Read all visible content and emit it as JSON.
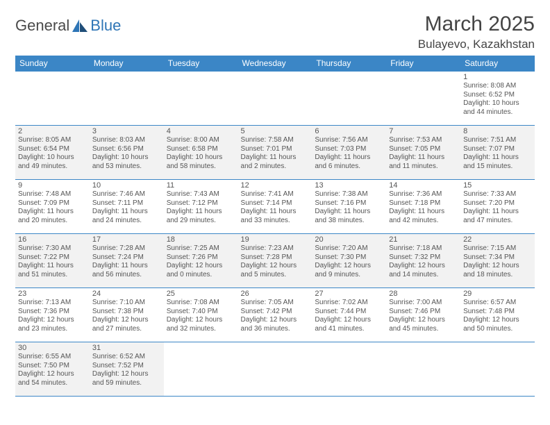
{
  "logo": {
    "part1": "General",
    "part2": "Blue"
  },
  "title": "March 2025",
  "location": "Bulayevo, Kazakhstan",
  "colors": {
    "header_bg": "#3b86c6",
    "header_text": "#ffffff",
    "shaded_bg": "#f2f2f2",
    "border": "#3b86c6",
    "text": "#555555"
  },
  "day_headers": [
    "Sunday",
    "Monday",
    "Tuesday",
    "Wednesday",
    "Thursday",
    "Friday",
    "Saturday"
  ],
  "weeks": [
    [
      {
        "empty": true
      },
      {
        "empty": true
      },
      {
        "empty": true
      },
      {
        "empty": true
      },
      {
        "empty": true
      },
      {
        "empty": true
      },
      {
        "day": 1,
        "sunrise": "8:08 AM",
        "sunset": "6:52 PM",
        "daylight": "10 hours and 44 minutes."
      }
    ],
    [
      {
        "day": 2,
        "shaded": true,
        "sunrise": "8:05 AM",
        "sunset": "6:54 PM",
        "daylight": "10 hours and 49 minutes."
      },
      {
        "day": 3,
        "shaded": true,
        "sunrise": "8:03 AM",
        "sunset": "6:56 PM",
        "daylight": "10 hours and 53 minutes."
      },
      {
        "day": 4,
        "shaded": true,
        "sunrise": "8:00 AM",
        "sunset": "6:58 PM",
        "daylight": "10 hours and 58 minutes."
      },
      {
        "day": 5,
        "shaded": true,
        "sunrise": "7:58 AM",
        "sunset": "7:01 PM",
        "daylight": "11 hours and 2 minutes."
      },
      {
        "day": 6,
        "shaded": true,
        "sunrise": "7:56 AM",
        "sunset": "7:03 PM",
        "daylight": "11 hours and 6 minutes."
      },
      {
        "day": 7,
        "shaded": true,
        "sunrise": "7:53 AM",
        "sunset": "7:05 PM",
        "daylight": "11 hours and 11 minutes."
      },
      {
        "day": 8,
        "shaded": true,
        "sunrise": "7:51 AM",
        "sunset": "7:07 PM",
        "daylight": "11 hours and 15 minutes."
      }
    ],
    [
      {
        "day": 9,
        "sunrise": "7:48 AM",
        "sunset": "7:09 PM",
        "daylight": "11 hours and 20 minutes."
      },
      {
        "day": 10,
        "sunrise": "7:46 AM",
        "sunset": "7:11 PM",
        "daylight": "11 hours and 24 minutes."
      },
      {
        "day": 11,
        "sunrise": "7:43 AM",
        "sunset": "7:12 PM",
        "daylight": "11 hours and 29 minutes."
      },
      {
        "day": 12,
        "sunrise": "7:41 AM",
        "sunset": "7:14 PM",
        "daylight": "11 hours and 33 minutes."
      },
      {
        "day": 13,
        "sunrise": "7:38 AM",
        "sunset": "7:16 PM",
        "daylight": "11 hours and 38 minutes."
      },
      {
        "day": 14,
        "sunrise": "7:36 AM",
        "sunset": "7:18 PM",
        "daylight": "11 hours and 42 minutes."
      },
      {
        "day": 15,
        "sunrise": "7:33 AM",
        "sunset": "7:20 PM",
        "daylight": "11 hours and 47 minutes."
      }
    ],
    [
      {
        "day": 16,
        "shaded": true,
        "sunrise": "7:30 AM",
        "sunset": "7:22 PM",
        "daylight": "11 hours and 51 minutes."
      },
      {
        "day": 17,
        "shaded": true,
        "sunrise": "7:28 AM",
        "sunset": "7:24 PM",
        "daylight": "11 hours and 56 minutes."
      },
      {
        "day": 18,
        "shaded": true,
        "sunrise": "7:25 AM",
        "sunset": "7:26 PM",
        "daylight": "12 hours and 0 minutes."
      },
      {
        "day": 19,
        "shaded": true,
        "sunrise": "7:23 AM",
        "sunset": "7:28 PM",
        "daylight": "12 hours and 5 minutes."
      },
      {
        "day": 20,
        "shaded": true,
        "sunrise": "7:20 AM",
        "sunset": "7:30 PM",
        "daylight": "12 hours and 9 minutes."
      },
      {
        "day": 21,
        "shaded": true,
        "sunrise": "7:18 AM",
        "sunset": "7:32 PM",
        "daylight": "12 hours and 14 minutes."
      },
      {
        "day": 22,
        "shaded": true,
        "sunrise": "7:15 AM",
        "sunset": "7:34 PM",
        "daylight": "12 hours and 18 minutes."
      }
    ],
    [
      {
        "day": 23,
        "sunrise": "7:13 AM",
        "sunset": "7:36 PM",
        "daylight": "12 hours and 23 minutes."
      },
      {
        "day": 24,
        "sunrise": "7:10 AM",
        "sunset": "7:38 PM",
        "daylight": "12 hours and 27 minutes."
      },
      {
        "day": 25,
        "sunrise": "7:08 AM",
        "sunset": "7:40 PM",
        "daylight": "12 hours and 32 minutes."
      },
      {
        "day": 26,
        "sunrise": "7:05 AM",
        "sunset": "7:42 PM",
        "daylight": "12 hours and 36 minutes."
      },
      {
        "day": 27,
        "sunrise": "7:02 AM",
        "sunset": "7:44 PM",
        "daylight": "12 hours and 41 minutes."
      },
      {
        "day": 28,
        "sunrise": "7:00 AM",
        "sunset": "7:46 PM",
        "daylight": "12 hours and 45 minutes."
      },
      {
        "day": 29,
        "sunrise": "6:57 AM",
        "sunset": "7:48 PM",
        "daylight": "12 hours and 50 minutes."
      }
    ],
    [
      {
        "day": 30,
        "shaded": true,
        "sunrise": "6:55 AM",
        "sunset": "7:50 PM",
        "daylight": "12 hours and 54 minutes."
      },
      {
        "day": 31,
        "shaded": true,
        "sunrise": "6:52 AM",
        "sunset": "7:52 PM",
        "daylight": "12 hours and 59 minutes."
      },
      {
        "empty": true
      },
      {
        "empty": true
      },
      {
        "empty": true
      },
      {
        "empty": true
      },
      {
        "empty": true
      }
    ]
  ]
}
